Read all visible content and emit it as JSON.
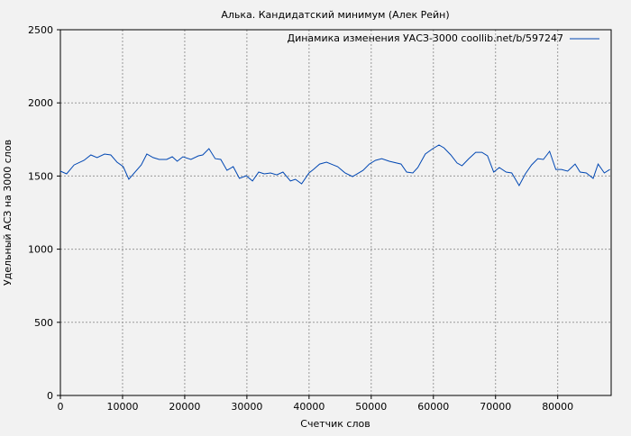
{
  "chart_data": {
    "type": "line",
    "title": "Алька. Кандидатский минимум (Алек Рейн)",
    "xlabel": "Счетчик слов",
    "ylabel": "Удельный АСЗ на 3000 слов",
    "xlim": [
      0,
      88600
    ],
    "ylim": [
      0,
      2500
    ],
    "xticks": [
      0,
      10000,
      20000,
      30000,
      40000,
      50000,
      60000,
      70000,
      80000
    ],
    "yticks": [
      0,
      500,
      1000,
      1500,
      2000,
      2500
    ],
    "grid": true,
    "legend_position": "top-right",
    "series": [
      {
        "name": "Динамика изменения УАСЗ-3000 coollib.net/b/597247",
        "color": "#0047b3",
        "x": [
          0,
          1000,
          2200,
          3800,
          4900,
          5900,
          7100,
          8100,
          9100,
          10100,
          11000,
          13000,
          13900,
          14900,
          15900,
          17100,
          18000,
          18800,
          19700,
          21000,
          22200,
          22900,
          23900,
          24900,
          25800,
          26800,
          27800,
          28800,
          29900,
          30900,
          31900,
          32800,
          33800,
          34800,
          35800,
          37000,
          37800,
          38800,
          40000,
          40700,
          41700,
          42800,
          43900,
          44600,
          45800,
          47000,
          48700,
          49700,
          50700,
          51700,
          52900,
          54800,
          55700,
          56700,
          57500,
          58700,
          59900,
          60900,
          61700,
          62800,
          63800,
          64600,
          65700,
          66800,
          67800,
          68700,
          69700,
          70600,
          71700,
          72600,
          73800,
          74800,
          75800,
          76800,
          77700,
          78700,
          79700,
          80600,
          81600,
          82800,
          83600,
          84600,
          85700,
          86500,
          87500,
          88400
        ],
        "y": [
          1533,
          1515,
          1576,
          1607,
          1644,
          1626,
          1650,
          1644,
          1595,
          1564,
          1478,
          1576,
          1650,
          1626,
          1613,
          1613,
          1632,
          1601,
          1632,
          1613,
          1638,
          1644,
          1687,
          1619,
          1613,
          1539,
          1564,
          1484,
          1502,
          1466,
          1527,
          1515,
          1521,
          1508,
          1527,
          1466,
          1478,
          1447,
          1521,
          1545,
          1582,
          1595,
          1576,
          1564,
          1521,
          1496,
          1539,
          1582,
          1607,
          1619,
          1601,
          1582,
          1527,
          1521,
          1558,
          1650,
          1687,
          1712,
          1693,
          1644,
          1589,
          1570,
          1619,
          1662,
          1662,
          1638,
          1527,
          1558,
          1527,
          1521,
          1435,
          1515,
          1576,
          1619,
          1613,
          1669,
          1545,
          1545,
          1533,
          1582,
          1527,
          1521,
          1484,
          1582,
          1521,
          1545
        ]
      }
    ]
  }
}
